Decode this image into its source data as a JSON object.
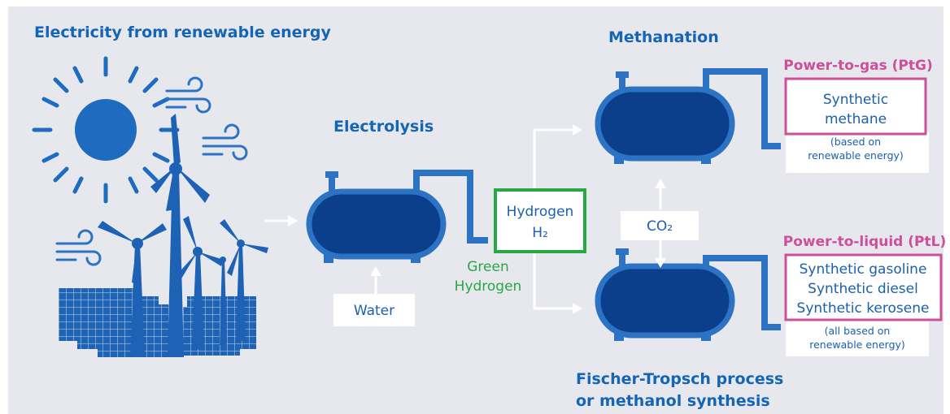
{
  "electricity": {
    "heading": "Electricity from renewable energy"
  },
  "electrolysis": {
    "heading": "Electrolysis",
    "input": "Water"
  },
  "hydrogen": {
    "name": "Hydrogen",
    "formula": "H₂",
    "note": [
      "Green",
      "Hydrogen"
    ]
  },
  "co2": "CO₂",
  "methanation": {
    "heading": "Methanation"
  },
  "fischer_tropsch": {
    "heading": [
      "Fischer-Tropsch process",
      "or methanol synthesis"
    ]
  },
  "ptg": {
    "title": "Power-to-gas (PtG)",
    "products": [
      "Synthetic",
      "methane"
    ],
    "note": [
      "(based on",
      "renewable energy)"
    ]
  },
  "ptl": {
    "title": "Power-to-liquid (PtL)",
    "products": [
      "Synthetic gasoline",
      "Synthetic diesel",
      "Synthetic kerosene"
    ],
    "note": [
      "(all based on",
      "renewable energy)"
    ]
  }
}
